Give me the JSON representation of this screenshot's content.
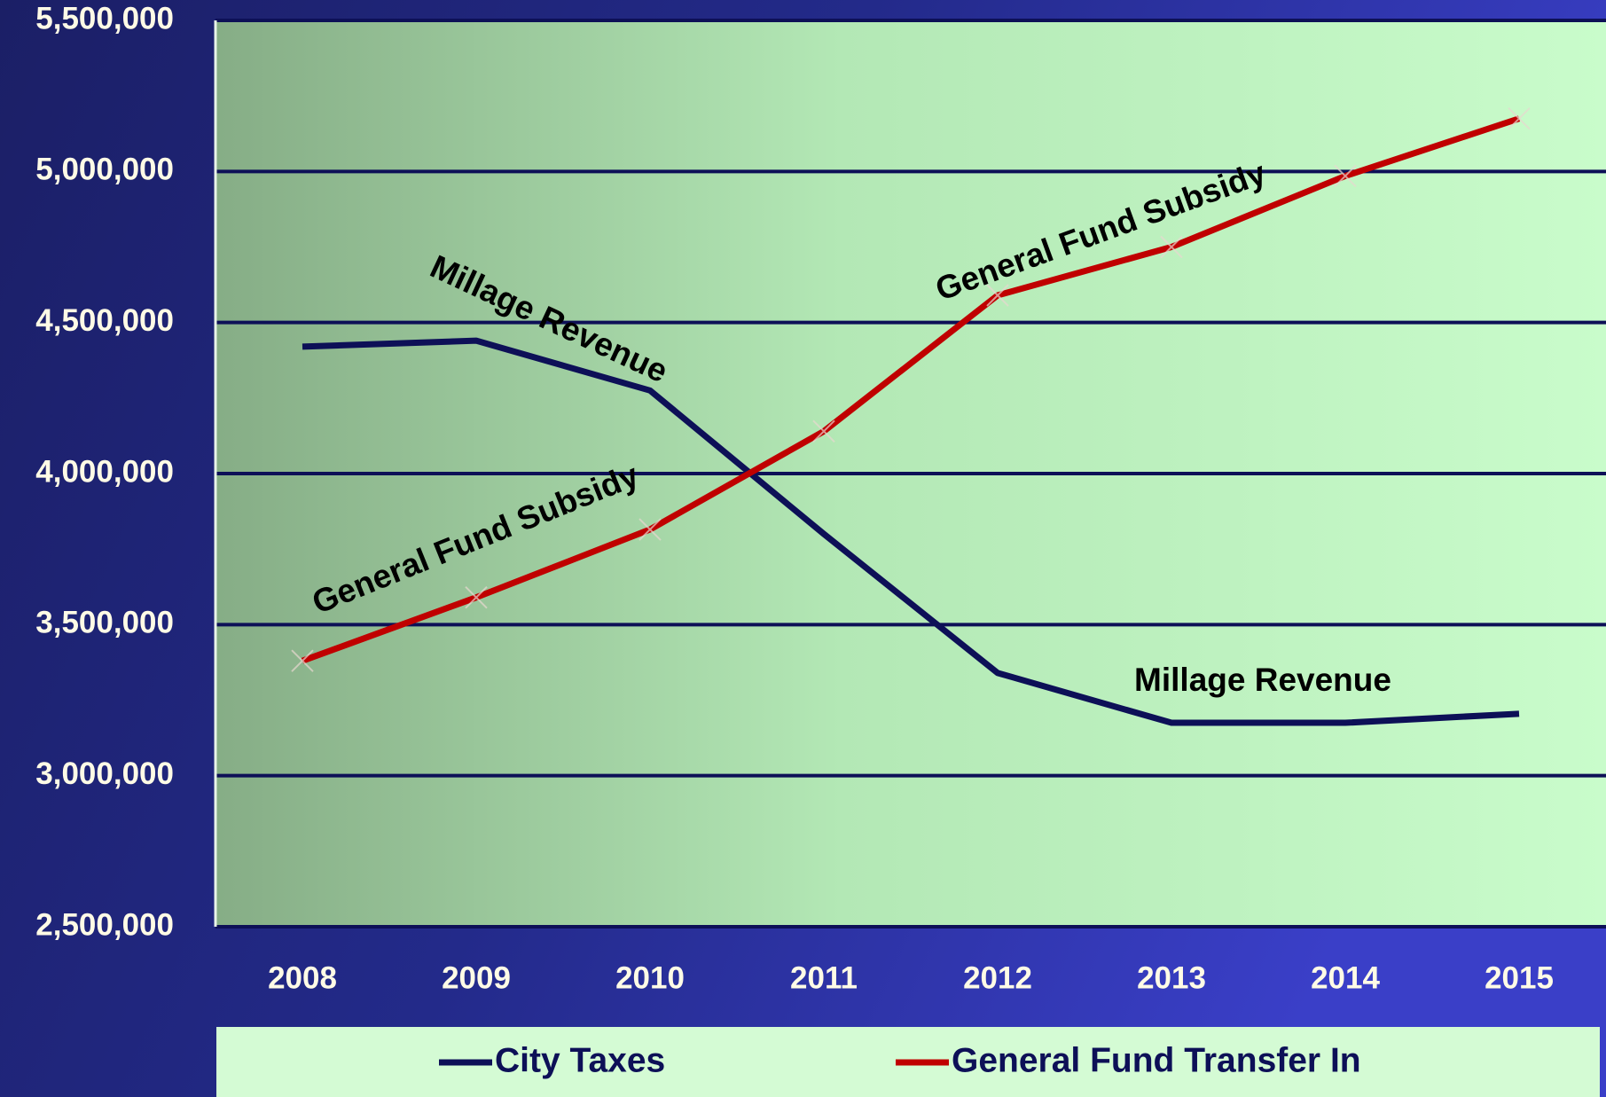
{
  "chart_data": {
    "type": "line",
    "categories": [
      "2008",
      "2009",
      "2010",
      "2011",
      "2012",
      "2013",
      "2014",
      "2015"
    ],
    "series": [
      {
        "name": "City Taxes",
        "color": "#0d1057",
        "values": [
          4420000,
          4440000,
          4275000,
          3800000,
          3340000,
          3175000,
          3175000,
          3205000
        ]
      },
      {
        "name": "General Fund Transfer In",
        "color": "#c00000",
        "values": [
          3380000,
          3590000,
          3815000,
          4140000,
          4590000,
          4750000,
          4985000,
          5175000
        ]
      }
    ],
    "ylim": [
      2500000,
      5500000
    ],
    "yticks": [
      {
        "value": 2500000,
        "label": "2,500,000"
      },
      {
        "value": 3000000,
        "label": "3,000,000"
      },
      {
        "value": 3500000,
        "label": "3,500,000"
      },
      {
        "value": 4000000,
        "label": "4,000,000"
      },
      {
        "value": 4500000,
        "label": "4,500,000"
      },
      {
        "value": 5000000,
        "label": "5,000,000"
      },
      {
        "value": 5500000,
        "label": "5,500,000"
      }
    ],
    "grid": true,
    "legend": "bottom",
    "annotations": [
      "Millage Revenue",
      "General Fund Subsidy",
      "General Fund Subsidy",
      "Millage Revenue"
    ]
  }
}
